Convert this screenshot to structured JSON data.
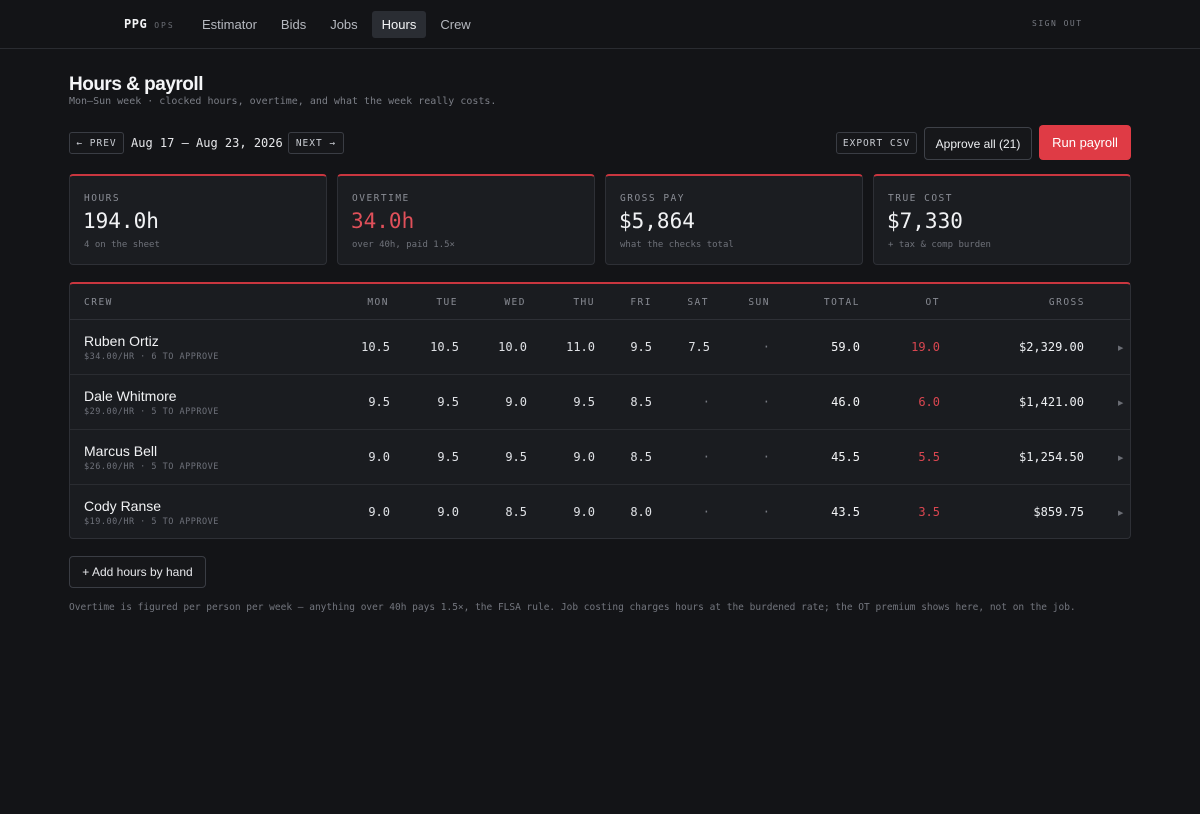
{
  "nav": {
    "brand": "PPG",
    "brand_sub": "OPS",
    "items": [
      {
        "label": "Estimator",
        "active": false
      },
      {
        "label": "Bids",
        "active": false
      },
      {
        "label": "Jobs",
        "active": false
      },
      {
        "label": "Hours",
        "active": true
      },
      {
        "label": "Crew",
        "active": false
      }
    ],
    "sign_out": "SIGN OUT"
  },
  "header": {
    "title": "Hours & payroll",
    "subtitle": "Mon–Sun week · clocked hours, overtime, and what the week really costs."
  },
  "week": {
    "prev_label": "← PREV",
    "range": "Aug 17 – Aug 23, 2026",
    "next_label": "NEXT →"
  },
  "actions": {
    "export_label": "EXPORT CSV",
    "approve_label": "Approve all (21)",
    "run_label": "Run payroll"
  },
  "stats": [
    {
      "label": "HOURS",
      "value": "194.0h",
      "note": "4 on the sheet"
    },
    {
      "label": "OVERTIME",
      "value": "34.0h",
      "note": "over 40h, paid 1.5×"
    },
    {
      "label": "GROSS PAY",
      "value": "$5,864",
      "note": "what the checks total"
    },
    {
      "label": "TRUE COST",
      "value": "$7,330",
      "note": "+ tax & comp burden"
    }
  ],
  "table": {
    "headers": {
      "crew": "CREW",
      "mon": "MON",
      "tue": "TUE",
      "wed": "WED",
      "thu": "THU",
      "fri": "FRI",
      "sat": "SAT",
      "sun": "SUN",
      "total": "TOTAL",
      "ot": "OT",
      "gross": "GROSS"
    },
    "rows": [
      {
        "name": "Ruben Ortiz",
        "meta": "$34.00/HR · 6 TO APPROVE",
        "mon": "10.5",
        "tue": "10.5",
        "wed": "10.0",
        "thu": "11.0",
        "fri": "9.5",
        "sat": "7.5",
        "sun": "·",
        "total": "59.0",
        "ot": "19.0",
        "gross": "$2,329.00"
      },
      {
        "name": "Dale Whitmore",
        "meta": "$29.00/HR · 5 TO APPROVE",
        "mon": "9.5",
        "tue": "9.5",
        "wed": "9.0",
        "thu": "9.5",
        "fri": "8.5",
        "sat": "·",
        "sun": "·",
        "total": "46.0",
        "ot": "6.0",
        "gross": "$1,421.00"
      },
      {
        "name": "Marcus Bell",
        "meta": "$26.00/HR · 5 TO APPROVE",
        "mon": "9.0",
        "tue": "9.5",
        "wed": "9.5",
        "thu": "9.0",
        "fri": "8.5",
        "sat": "·",
        "sun": "·",
        "total": "45.5",
        "ot": "5.5",
        "gross": "$1,254.50"
      },
      {
        "name": "Cody Ranse",
        "meta": "$19.00/HR · 5 TO APPROVE",
        "mon": "9.0",
        "tue": "9.0",
        "wed": "8.5",
        "thu": "9.0",
        "fri": "8.0",
        "sat": "·",
        "sun": "·",
        "total": "43.5",
        "ot": "3.5",
        "gross": "$859.75"
      }
    ]
  },
  "add_hours_label": "+ Add hours by hand",
  "footnote": "Overtime is figured per person per week — anything over 40h pays 1.5×, the FLSA rule. Job costing charges hours at the burdened rate; the OT premium shows here, not on the job.",
  "colors": {
    "accent": "#df3b45",
    "overtime": "#d94650",
    "background": "#131417",
    "panel": "#1b1d21"
  }
}
